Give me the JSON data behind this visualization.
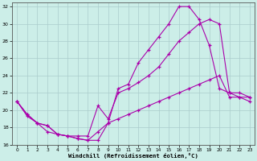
{
  "xlabel": "Windchill (Refroidissement éolien,°C)",
  "background_color": "#cceee8",
  "grid_color": "#aacccc",
  "line_color": "#aa00aa",
  "xlim": [
    -0.5,
    23.5
  ],
  "ylim": [
    16,
    32.5
  ],
  "xticks": [
    0,
    1,
    2,
    3,
    4,
    5,
    6,
    7,
    8,
    9,
    10,
    11,
    12,
    13,
    14,
    15,
    16,
    17,
    18,
    19,
    20,
    21,
    22,
    23
  ],
  "yticks": [
    16,
    18,
    20,
    22,
    24,
    26,
    28,
    30,
    32
  ],
  "line1_x": [
    0,
    1,
    2,
    3,
    4,
    5,
    6,
    7,
    8,
    9,
    10,
    11,
    12,
    13,
    14,
    15,
    16,
    17,
    18,
    19,
    20,
    21,
    22,
    23
  ],
  "line1_y": [
    21.0,
    19.5,
    18.5,
    18.2,
    17.2,
    17.0,
    16.7,
    16.5,
    17.5,
    18.5,
    22.5,
    23.0,
    25.5,
    27.0,
    28.5,
    30.0,
    32.0,
    32.0,
    30.5,
    27.5,
    22.5,
    22.0,
    21.5,
    21.0
  ],
  "line2_x": [
    0,
    1,
    2,
    3,
    4,
    5,
    6,
    7,
    8,
    9,
    10,
    11,
    12,
    13,
    14,
    15,
    16,
    17,
    18,
    19,
    20,
    21,
    22,
    23
  ],
  "line2_y": [
    21.0,
    19.5,
    18.5,
    17.5,
    17.2,
    17.0,
    17.0,
    17.0,
    20.5,
    19.0,
    22.0,
    22.5,
    23.2,
    24.0,
    25.0,
    26.5,
    28.0,
    29.0,
    30.0,
    30.5,
    30.0,
    22.0,
    22.0,
    21.5
  ],
  "line3_x": [
    0,
    1,
    2,
    3,
    4,
    5,
    6,
    7,
    8,
    9,
    10,
    11,
    12,
    13,
    14,
    15,
    16,
    17,
    18,
    19,
    20,
    21,
    22,
    23
  ],
  "line3_y": [
    21.0,
    19.3,
    18.5,
    18.2,
    17.2,
    17.0,
    16.7,
    16.5,
    16.5,
    18.5,
    19.0,
    19.5,
    20.0,
    20.5,
    21.0,
    21.5,
    22.0,
    22.5,
    23.0,
    23.5,
    24.0,
    21.5,
    21.5,
    21.5
  ]
}
